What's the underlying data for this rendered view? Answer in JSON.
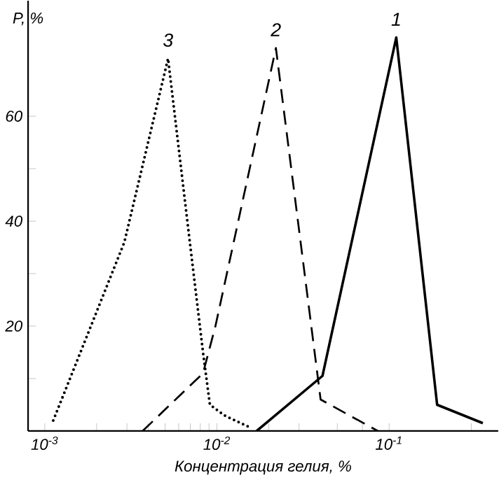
{
  "chart_data": {
    "type": "line",
    "xlabel": "Концентрация гелия, %",
    "ylabel": "P, %",
    "log": "x",
    "grid": false,
    "marker": "none",
    "xlim": [
      0.0008,
      0.43
    ],
    "ylim": [
      0,
      82
    ],
    "xticks": [
      {
        "value": 0.001,
        "label": "10$^{-3}$"
      },
      {
        "value": 0.002,
        "label": null
      },
      {
        "value": 0.003,
        "label": null
      },
      {
        "value": 0.004,
        "label": null
      },
      {
        "value": 0.005,
        "label": null
      },
      {
        "value": 0.006,
        "label": null
      },
      {
        "value": 0.007,
        "label": null
      },
      {
        "value": 0.008,
        "label": null
      },
      {
        "value": 0.009,
        "label": null
      },
      {
        "value": 0.01,
        "label": "10$^{-2}$"
      },
      {
        "value": 0.02,
        "label": null
      },
      {
        "value": 0.03,
        "label": null
      },
      {
        "value": 0.05,
        "label": null
      },
      {
        "value": 0.07,
        "label": null
      },
      {
        "value": 0.1,
        "label": "10$^{-1}$"
      },
      {
        "value": 0.3,
        "label": null
      }
    ],
    "yticks": [
      {
        "value": 10,
        "label": null
      },
      20,
      {
        "value": 30,
        "label": null
      },
      40,
      {
        "value": 50,
        "label": null
      },
      60
    ],
    "series": [
      {
        "color": "#000000",
        "line_style": "solid",
        "x": [
          0.017,
          0.041,
          0.11,
          0.19,
          0.35
        ],
        "values": [
          0,
          10.5,
          75,
          5,
          1.5
        ]
      },
      {
        "color": "#000000",
        "line_style": "dashed",
        "x": [
          0.0037,
          0.0083,
          0.0098,
          0.022,
          0.04,
          0.086
        ],
        "values": [
          0,
          11,
          20,
          73,
          6,
          0
        ]
      },
      {
        "color": "#000000",
        "line_style": "dotted",
        "x": [
          0.00112,
          0.0029,
          0.0052,
          0.0069,
          0.0083,
          0.0091,
          0.011,
          0.016
        ],
        "values": [
          2,
          36,
          71,
          37,
          15,
          5,
          3,
          0.5
        ]
      }
    ],
    "annotations": [
      {
        "text": "1",
        "x": 0.11,
        "y": 75
      },
      {
        "text": "2",
        "x": 0.022,
        "y": 73
      },
      {
        "text": "3",
        "x": 0.0052,
        "y": 71
      }
    ]
  }
}
